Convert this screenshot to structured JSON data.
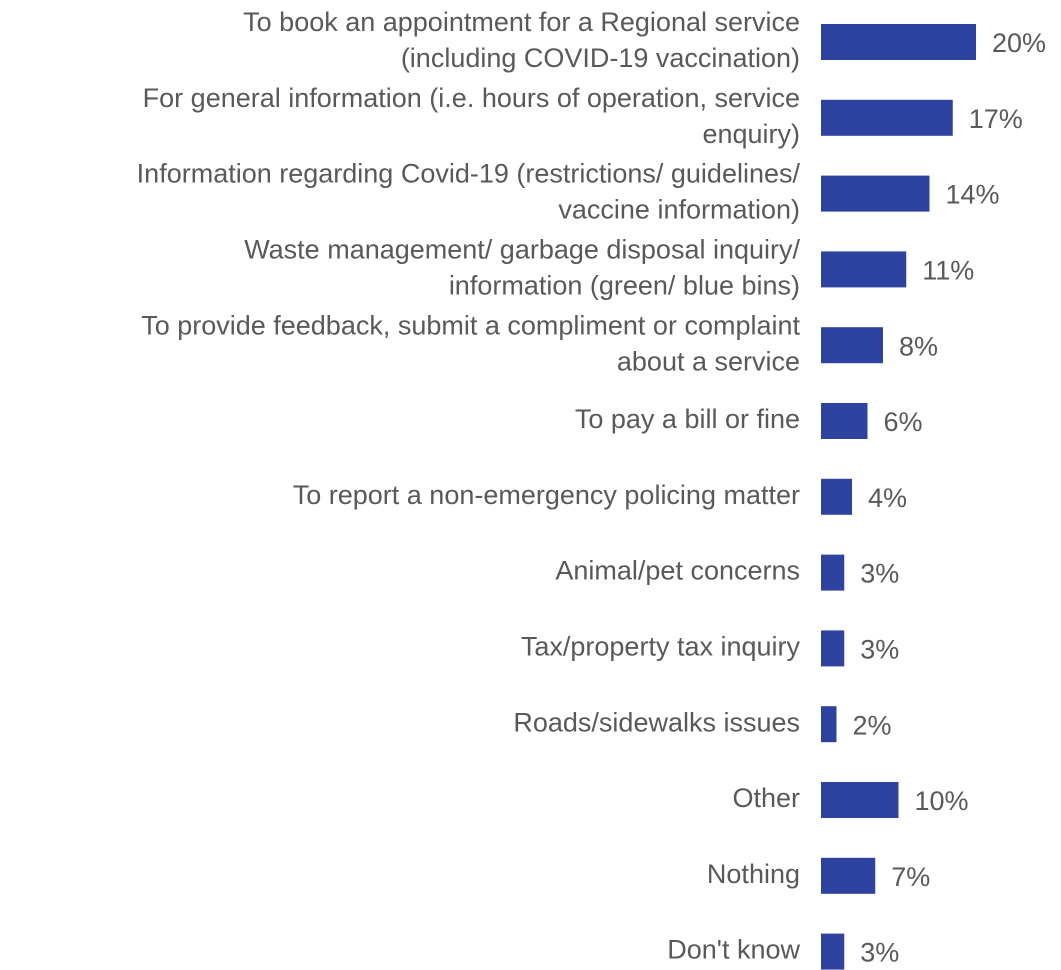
{
  "chart_data": {
    "type": "bar",
    "orientation": "horizontal",
    "color": "#2e43a0",
    "categories": [
      [
        "To book an appointment for a Regional service",
        "(including COVID-19 vaccination)"
      ],
      [
        "For general information (i.e. hours of operation, service",
        "enquiry)"
      ],
      [
        "Information regarding Covid-19 (restrictions/ guidelines/",
        "vaccine information)"
      ],
      [
        "Waste management/ garbage disposal inquiry/",
        "information (green/ blue bins)"
      ],
      [
        "To provide feedback, submit a compliment or complaint",
        "about a service"
      ],
      [
        "To pay a bill or fine"
      ],
      [
        "To report a non-emergency policing matter"
      ],
      [
        "Animal/pet concerns"
      ],
      [
        "Tax/property tax inquiry"
      ],
      [
        "Roads/sidewalks issues"
      ],
      [
        "Other"
      ],
      [
        "Nothing"
      ],
      [
        "Don't know"
      ]
    ],
    "values": [
      20,
      17,
      14,
      11,
      8,
      6,
      4,
      3,
      3,
      2,
      10,
      7,
      3
    ],
    "value_labels": [
      "20%",
      "17%",
      "14%",
      "11%",
      "8%",
      "6%",
      "4%",
      "3%",
      "3%",
      "2%",
      "10%",
      "7%",
      "3%"
    ]
  }
}
